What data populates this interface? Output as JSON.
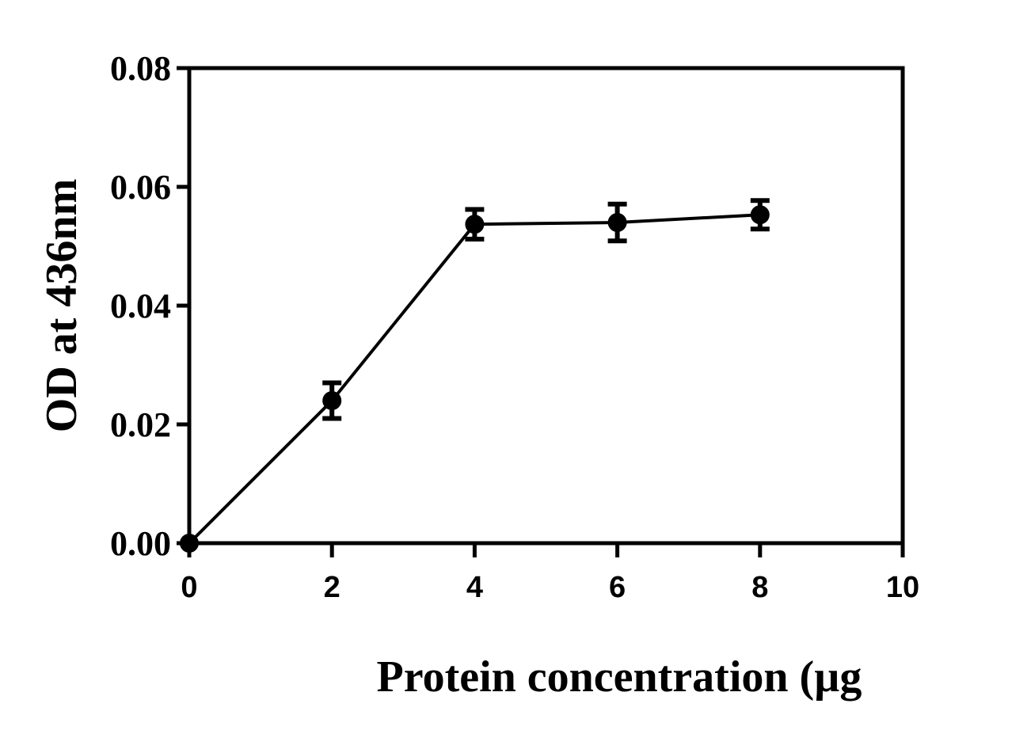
{
  "chart_data": {
    "type": "line",
    "title": "",
    "xlabel": "Protein concentration (µg",
    "ylabel": "OD at 436nm",
    "xlim": [
      0,
      10
    ],
    "ylim": [
      0,
      0.08
    ],
    "x_ticks": [
      "0",
      "2",
      "4",
      "6",
      "8",
      "10"
    ],
    "y_ticks": [
      "0.00",
      "0.02",
      "0.04",
      "0.06",
      "0.08"
    ],
    "grid": false,
    "series": [
      {
        "x": [
          0,
          2,
          4,
          6,
          8
        ],
        "y": [
          0.0,
          0.024,
          0.0537,
          0.054,
          0.0553
        ],
        "error": [
          0.0,
          0.003,
          0.0025,
          0.0031,
          0.0024
        ],
        "marker": "circle",
        "color": "#000000"
      }
    ]
  }
}
